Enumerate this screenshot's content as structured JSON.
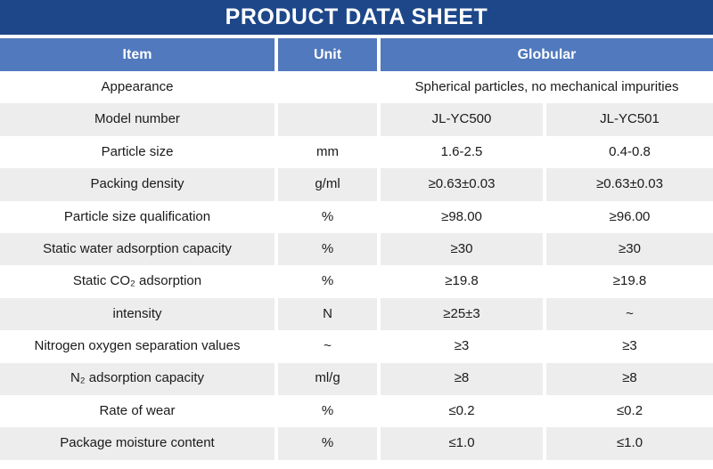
{
  "title": "PRODUCT DATA SHEET",
  "colors": {
    "title_bar": "#1d4789",
    "header_row": "#5179bd",
    "row_alt_gray": "#ededed",
    "text": "#1a1a1a",
    "header_text": "#ffffff"
  },
  "table": {
    "headers": {
      "item": "Item",
      "unit": "Unit",
      "globular": "Globular"
    },
    "rows": [
      {
        "item": "Appearance",
        "unit": "",
        "span_value": "Spherical particles, no mechanical impurities"
      },
      {
        "item": "Model number",
        "unit": "",
        "value1": "JL-YC500",
        "value2": "JL-YC501"
      },
      {
        "item": "Particle size",
        "unit": "mm",
        "value1": "1.6-2.5",
        "value2": "0.4-0.8"
      },
      {
        "item": "Packing density",
        "unit": "g/ml",
        "value1": "≥0.63±0.03",
        "value2": "≥0.63±0.03"
      },
      {
        "item": "Particle size qualification",
        "unit": "%",
        "value1": "≥98.00",
        "value2": "≥96.00"
      },
      {
        "item": "Static water adsorption capacity",
        "unit": "%",
        "value1": "≥30",
        "value2": "≥30"
      },
      {
        "item": "Static CO₂ adsorption",
        "unit": "%",
        "value1": "≥19.8",
        "value2": "≥19.8"
      },
      {
        "item": "intensity",
        "unit": "N",
        "value1": "≥25±3",
        "value2": "~"
      },
      {
        "item": "Nitrogen oxygen separation values",
        "unit": "~",
        "value1": "≥3",
        "value2": "≥3"
      },
      {
        "item": "N₂ adsorption capacity",
        "unit": "ml/g",
        "value1": "≥8",
        "value2": "≥8"
      },
      {
        "item": "Rate of wear",
        "unit": "%",
        "value1": "≤0.2",
        "value2": "≤0.2"
      },
      {
        "item": "Package moisture content",
        "unit": "%",
        "value1": "≤1.0",
        "value2": "≤1.0"
      }
    ]
  }
}
